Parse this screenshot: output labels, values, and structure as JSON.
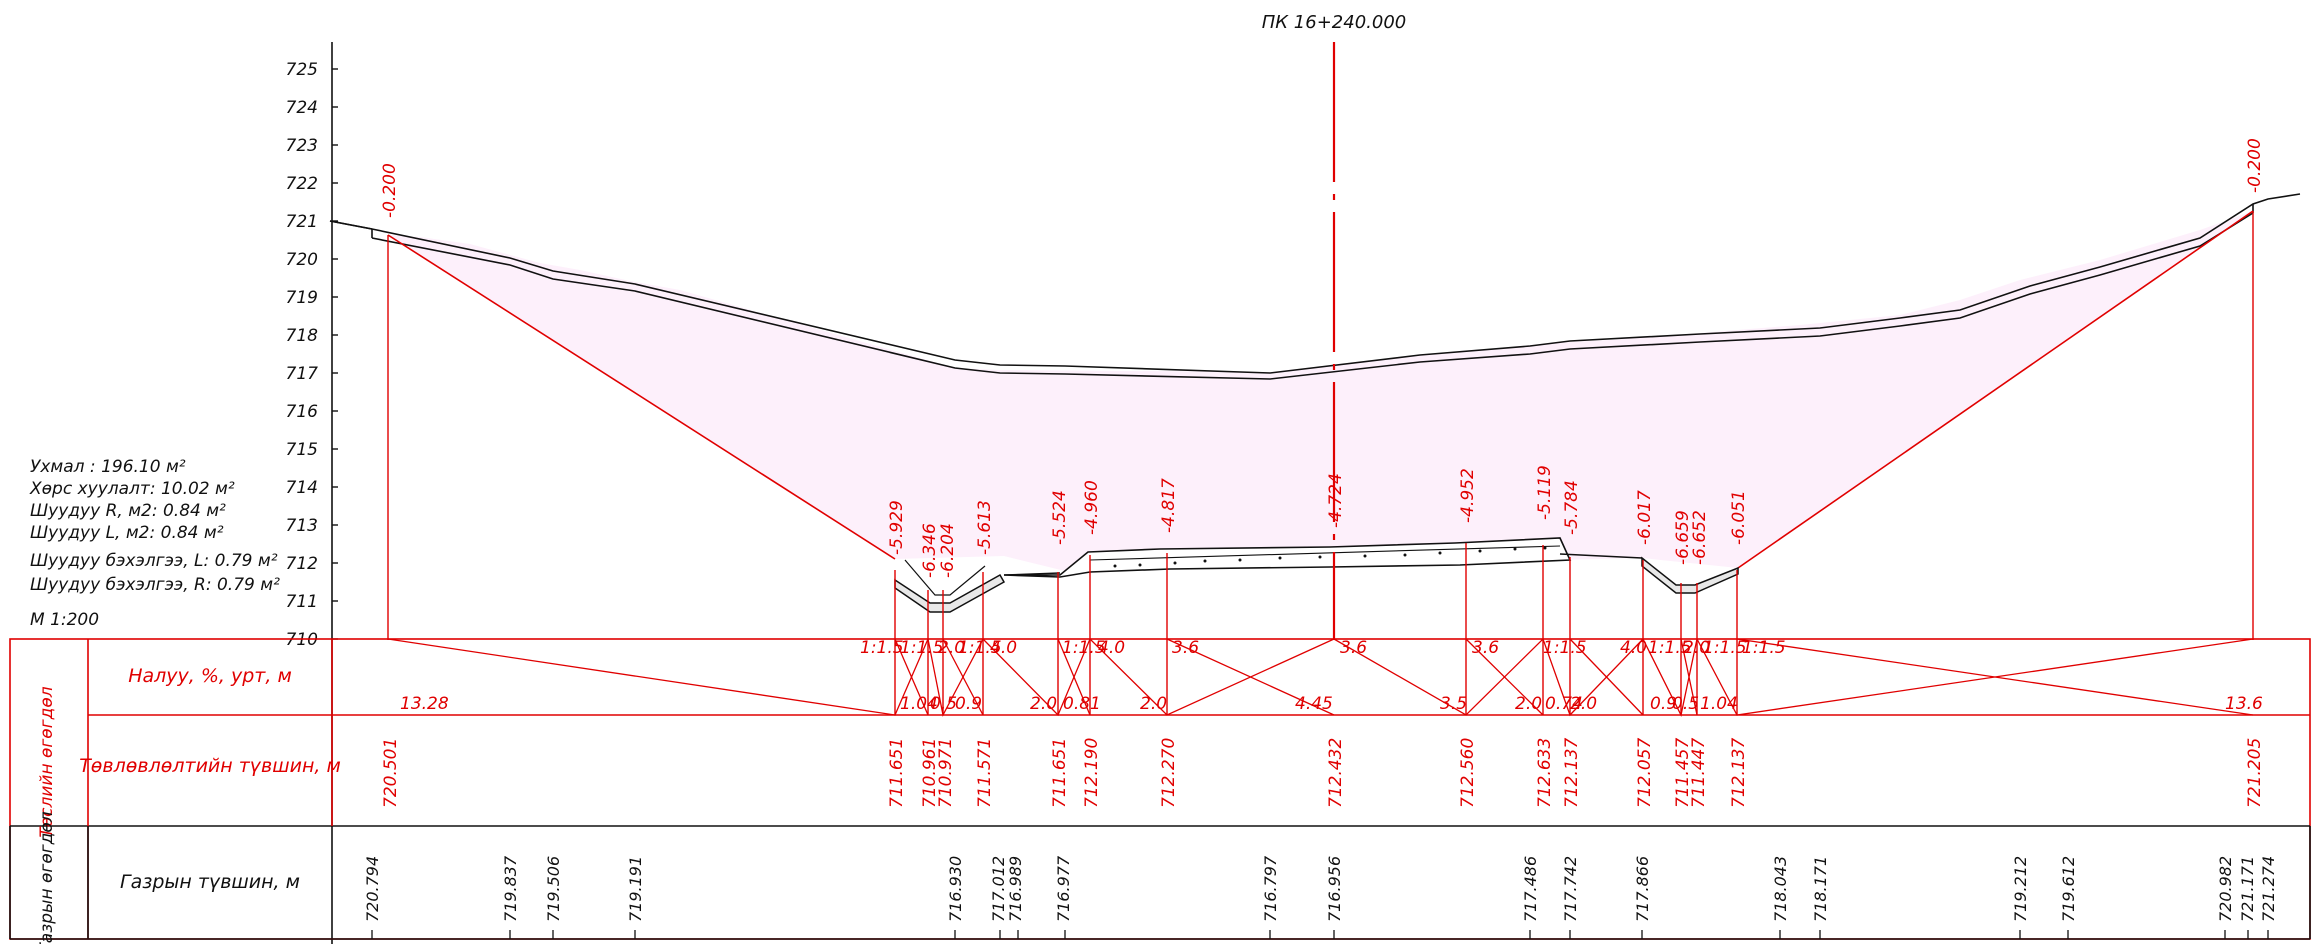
{
  "title": "ПК 16+240.000",
  "scale": "М 1:200",
  "y_ticks": [
    "725",
    "724",
    "723",
    "722",
    "721",
    "720",
    "719",
    "718",
    "717",
    "716",
    "715",
    "714",
    "713",
    "712",
    "711",
    "710"
  ],
  "summary": [
    "Ухмал : 196.10 м²",
    "Хөрс хуулалт: 10.02 м²",
    "Шуудуу R, м2: 0.84 м²",
    "Шуудуу L, м2: 0.84 м²",
    "Шуудуу бэхэлгээ, L: 0.79 м²",
    "Шуудуу бэхэлгээ, R: 0.79 м²"
  ],
  "design_marks": [
    "-0.200",
    "-5.929",
    "-6.346",
    "-6.204",
    "-5.613",
    "-5.524",
    "-4.960",
    "-4.817",
    "-4.724",
    "-4.952",
    "-5.119",
    "-5.784",
    "-6.017",
    "-6.659",
    "-6.652",
    "-6.051",
    "-0.200"
  ],
  "table": {
    "group_design": "Төслийн өгөгдөл",
    "group_ground": "Газрын өгөгдөл",
    "row_slope": "Налуу, %, урт, м",
    "row_design_level": "Төвлөвлөлтийн түвшин, м",
    "row_ground_level": "Газрын түвшин, м"
  },
  "slopes_top": [
    "1:1.5",
    "1:1.5",
    "2.0",
    "1:1.5",
    "4.0",
    "1:1.5",
    "4.0",
    "3.6",
    "3.6",
    "3.6",
    "1:1.5",
    "4.0",
    "1:1.5",
    "2.0",
    "1:1.5",
    "1:1.5"
  ],
  "lengths_bottom": [
    "13.28",
    "1.04",
    "0.5",
    "0.9",
    "2.0",
    "0.81",
    "2.0",
    "4.45",
    "3.5",
    "2.0",
    "0.74",
    "2.0",
    "0.9",
    "0.5",
    "1.04",
    "13.6"
  ],
  "design_levels": [
    "720.501",
    "711.651",
    "710.961",
    "710.971",
    "711.571",
    "711.651",
    "712.190",
    "712.270",
    "712.432",
    "712.560",
    "712.633",
    "712.137",
    "712.057",
    "711.457",
    "711.447",
    "712.137",
    "721.205"
  ],
  "ground_levels": [
    "720.794",
    "719.837",
    "719.506",
    "719.191",
    "716.930",
    "717.012",
    "716.989",
    "716.977",
    "716.797",
    "716.956",
    "717.486",
    "717.742",
    "717.866",
    "718.043",
    "718.171",
    "719.212",
    "719.612",
    "720.982",
    "721.171",
    "721.274"
  ]
}
